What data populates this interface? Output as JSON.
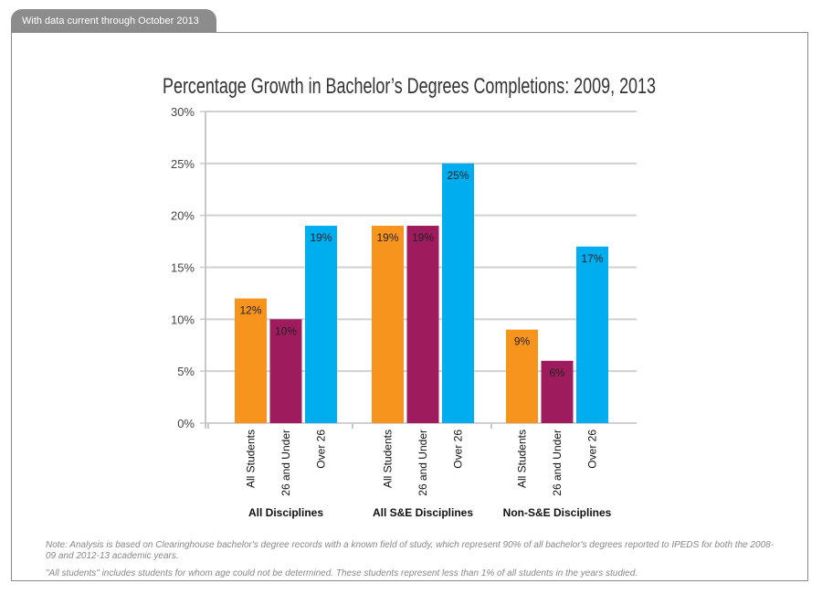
{
  "header": {
    "tab_label": "With data current through October 2013"
  },
  "notes": [
    "Note: Analysis is based on Clearinghouse bachelor's degree records with a known field of study, which represent 90% of all bachelor's degrees reported to IPEDS for both the 2008-09 and 2012-13 academic years.",
    "\"All students\" includes students for whom age could not be determined. These students represent less than 1% of all students in the years studied."
  ],
  "chart_data": {
    "type": "bar",
    "title": "Percentage Growth in Bachelor’s Degrees Completions: 2009, 2013",
    "ylim": [
      0,
      30
    ],
    "yticks": [
      "0%",
      "5%",
      "10%",
      "15%",
      "20%",
      "25%",
      "30%"
    ],
    "grid": true,
    "groups": [
      {
        "label": "All Disciplines",
        "bars": [
          {
            "category": "All Students",
            "value": 12,
            "label": "12%",
            "color": "#f7941d"
          },
          {
            "category": "26 and Under",
            "value": 10,
            "label": "10%",
            "color": "#9e1b5d"
          },
          {
            "category": "Over 26",
            "value": 19,
            "label": "19%",
            "color": "#00aeef"
          }
        ]
      },
      {
        "label": "All S&E Disciplines",
        "bars": [
          {
            "category": "All Students",
            "value": 19,
            "label": "19%",
            "color": "#f7941d"
          },
          {
            "category": "26 and Under",
            "value": 19,
            "label": "19%",
            "color": "#9e1b5d"
          },
          {
            "category": "Over 26",
            "value": 25,
            "label": "25%",
            "color": "#00aeef"
          }
        ]
      },
      {
        "label": "Non-S&E Disciplines",
        "bars": [
          {
            "category": "All Students",
            "value": 9,
            "label": "9%",
            "color": "#f7941d"
          },
          {
            "category": "26 and Under",
            "value": 6,
            "label": "6%",
            "color": "#9e1b5d"
          },
          {
            "category": "Over 26",
            "value": 17,
            "label": "17%",
            "color": "#00aeef"
          }
        ]
      }
    ]
  }
}
